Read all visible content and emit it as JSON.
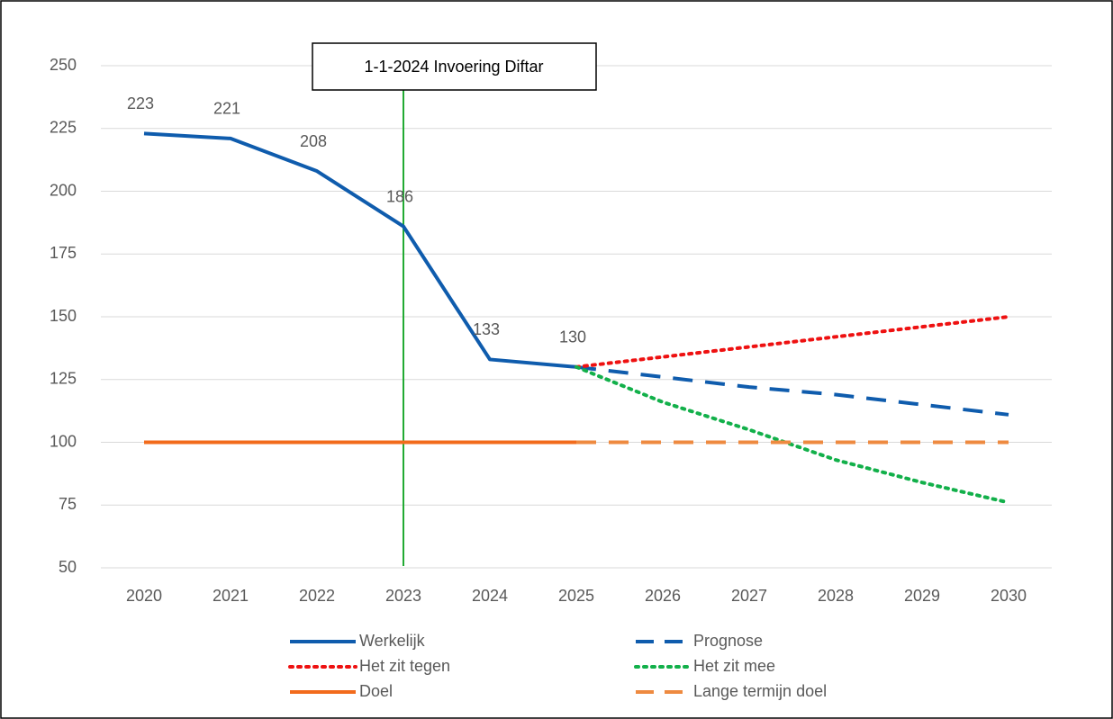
{
  "chart_data": {
    "type": "line",
    "categories": [
      "2020",
      "2021",
      "2022",
      "2023",
      "2024",
      "2025",
      "2026",
      "2027",
      "2028",
      "2029",
      "2030"
    ],
    "series": [
      {
        "name": "Werkelijk",
        "color": "#0f5cad",
        "style": "solid",
        "data_labels": true,
        "values": [
          223,
          221,
          208,
          186,
          133,
          130,
          null,
          null,
          null,
          null,
          null
        ]
      },
      {
        "name": "Prognose",
        "color": "#0f5cad",
        "style": "dashed",
        "values": [
          null,
          null,
          null,
          null,
          null,
          130,
          126,
          122,
          119,
          115,
          111
        ]
      },
      {
        "name": "Het zit tegen",
        "color": "#ee1111",
        "style": "dotted",
        "values": [
          null,
          null,
          null,
          null,
          null,
          130,
          134,
          138,
          142,
          146,
          150
        ]
      },
      {
        "name": "Het zit mee",
        "color": "#12b04a",
        "style": "dotted",
        "values": [
          null,
          null,
          null,
          null,
          null,
          130,
          116,
          105,
          93,
          84,
          76
        ]
      },
      {
        "name": "Doel",
        "color": "#f26b1c",
        "style": "solid",
        "values": [
          100,
          100,
          100,
          100,
          100,
          100,
          null,
          null,
          null,
          null,
          null
        ]
      },
      {
        "name": "Lange termijn doel",
        "color": "#ee8a40",
        "style": "dashed",
        "values": [
          null,
          null,
          null,
          null,
          null,
          100,
          100,
          100,
          100,
          100,
          100
        ]
      }
    ],
    "ylim": [
      50,
      250
    ],
    "yticks": [
      50,
      75,
      100,
      125,
      150,
      175,
      200,
      225,
      250
    ],
    "grid": true,
    "annotations": [
      {
        "text": "1-1-2024 Invoering Diftar",
        "x": "2023",
        "color": "#22aa33"
      }
    ],
    "legend": "bottom"
  }
}
